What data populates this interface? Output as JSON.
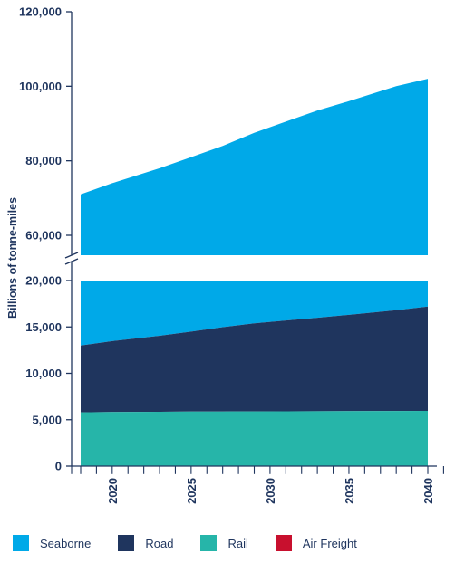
{
  "chart_data": {
    "type": "area",
    "stacked": true,
    "ylabel": "Billions of tonne-miles",
    "xlabel": "",
    "x": [
      2018,
      2020,
      2023,
      2025,
      2027,
      2029,
      2031,
      2033,
      2035,
      2038,
      2040
    ],
    "x_ticks": [
      "2020",
      "2025",
      "2030",
      "2035",
      "2040"
    ],
    "y_ticks_lower": [
      "0",
      "5,000",
      "10,000",
      "15,000",
      "20,000"
    ],
    "y_ticks_upper": [
      "60,000",
      "80,000",
      "100,000",
      "120,000"
    ],
    "axis_break": {
      "lower_range": [
        0,
        20000
      ],
      "upper_range": [
        55000,
        120000
      ]
    },
    "series": [
      {
        "name": "Rail",
        "color": "#26b5a9",
        "values": [
          5800,
          5820,
          5850,
          5870,
          5880,
          5890,
          5900,
          5910,
          5920,
          5940,
          5950
        ]
      },
      {
        "name": "Road",
        "color": "#1f355e",
        "values": [
          7200,
          7650,
          8200,
          8630,
          9100,
          9500,
          9800,
          10080,
          10380,
          10860,
          11250
        ]
      },
      {
        "name": "Seaborne",
        "color": "#00a9e8",
        "totals": [
          71000,
          74000,
          78000,
          81000,
          84000,
          87500,
          90500,
          93500,
          96000,
          100000,
          102000
        ]
      },
      {
        "name": "Air Freight",
        "color": "#c8102e",
        "values": [
          0,
          0,
          0,
          0,
          0,
          0,
          0,
          0,
          0,
          0,
          0
        ]
      }
    ],
    "legend": {
      "position": "bottom",
      "items": [
        {
          "label": "Seaborne",
          "color": "#00a9e8"
        },
        {
          "label": "Road",
          "color": "#1f355e"
        },
        {
          "label": "Rail",
          "color": "#26b5a9"
        },
        {
          "label": "Air Freight",
          "color": "#c8102e"
        }
      ]
    }
  }
}
